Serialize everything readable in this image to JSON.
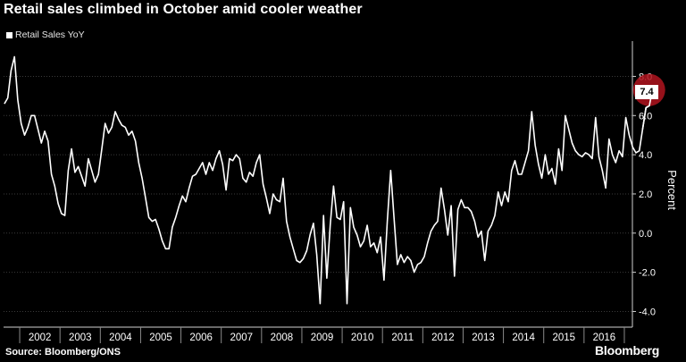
{
  "title": "Retail sales climbed in October amid cooler weather",
  "source": "Source: Bloomberg/ONS",
  "brand": "Bloomberg",
  "chart_data": {
    "type": "line",
    "title": "Retail sales climbed in October amid cooler weather",
    "ylabel": "Percent",
    "ylim": [
      -4.8,
      9.8
    ],
    "yticks": [
      "8.0",
      "6.0",
      "4.0",
      "2.0",
      "0.0",
      "-2.0",
      "-4.0"
    ],
    "ytick_values": [
      8,
      6,
      4,
      2,
      0,
      -2,
      -4
    ],
    "xlim": [
      2001.6,
      2017.2
    ],
    "xtick_labels": [
      "2002",
      "2003",
      "2004",
      "2005",
      "2006",
      "2007",
      "2008",
      "2009",
      "2010",
      "2011",
      "2012",
      "2013",
      "2014",
      "2015",
      "2016"
    ],
    "grid": true,
    "legend": "top-left",
    "colors": {
      "background": "#000000",
      "line": "#ffffff",
      "grid": "#3a3a3a",
      "highlight": "#b0141e"
    },
    "last_value_label": "7.4",
    "series": [
      {
        "name": "Retail Sales YoY",
        "x_start": 2001.62,
        "x_step": 0.0833333,
        "values": [
          6.6,
          6.9,
          8.3,
          9.0,
          6.8,
          5.6,
          5.0,
          5.4,
          6.0,
          6.0,
          5.3,
          4.6,
          5.2,
          4.7,
          3.0,
          2.4,
          1.5,
          1.0,
          0.9,
          3.2,
          4.3,
          3.1,
          3.4,
          2.9,
          2.4,
          3.8,
          3.2,
          2.6,
          3.0,
          4.3,
          5.6,
          5.1,
          5.4,
          6.2,
          5.8,
          5.5,
          5.4,
          5.0,
          5.2,
          4.7,
          3.6,
          2.8,
          1.8,
          0.8,
          0.6,
          0.7,
          0.2,
          -0.4,
          -0.8,
          -0.8,
          0.3,
          0.8,
          1.4,
          1.9,
          1.6,
          2.3,
          2.9,
          3.0,
          3.3,
          3.6,
          3.0,
          3.6,
          3.2,
          3.8,
          4.2,
          3.5,
          2.2,
          3.8,
          3.7,
          4.0,
          3.8,
          2.8,
          2.6,
          3.1,
          2.9,
          3.6,
          4.0,
          2.5,
          1.8,
          1.0,
          2.0,
          1.7,
          1.6,
          2.8,
          0.6,
          -0.2,
          -0.8,
          -1.4,
          -1.5,
          -1.3,
          -0.9,
          -0.1,
          0.5,
          -1.1,
          -3.6,
          0.9,
          -2.3,
          0.4,
          2.4,
          0.8,
          0.7,
          1.6,
          -3.6,
          1.3,
          0.3,
          -0.1,
          -0.7,
          -0.4,
          0.4,
          -0.7,
          -0.5,
          -1.0,
          -0.2,
          -2.4,
          0.6,
          3.2,
          0.8,
          -1.6,
          -1.1,
          -1.5,
          -1.2,
          -1.4,
          -2.0,
          -1.6,
          -1.5,
          -1.2,
          -0.5,
          0.1,
          0.4,
          0.6,
          2.3,
          1.2,
          -0.1,
          1.4,
          -2.2,
          1.2,
          1.7,
          1.3,
          1.3,
          1.1,
          0.6,
          -0.2,
          0.1,
          -1.4,
          0.1,
          0.4,
          0.9,
          2.1,
          1.4,
          2.1,
          1.6,
          3.2,
          3.7,
          3.0,
          3.0,
          3.6,
          4.2,
          6.2,
          4.5,
          3.5,
          2.8,
          4.0,
          3.0,
          3.3,
          2.5,
          4.3,
          3.2,
          6.0,
          5.3,
          4.6,
          4.2,
          4.0,
          3.9,
          4.1,
          4.0,
          3.8,
          5.9,
          3.9,
          3.2,
          2.3,
          4.8,
          4.0,
          3.6,
          4.2,
          3.9,
          5.9,
          5.0,
          4.4,
          4.1,
          4.2,
          5.3,
          6.4,
          6.5,
          7.4
        ]
      }
    ]
  }
}
